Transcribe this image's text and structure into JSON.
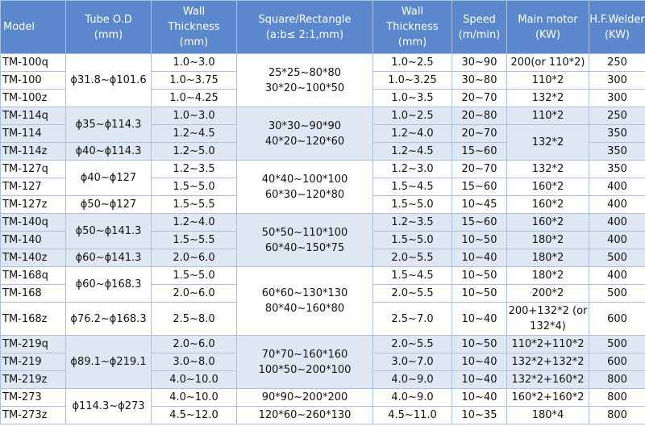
{
  "header": {
    "model": "Model",
    "tube_od": [
      "Tube O.D",
      "(mm)"
    ],
    "wall_thickness_round": [
      "Wall",
      "Thickness",
      "(mm)"
    ],
    "square_rect": [
      "Square/Rectangle",
      "(a:b≤ 2:1,mm)"
    ],
    "wall_thickness_square": [
      "Wall",
      "Thickness",
      "(mm)"
    ],
    "speed": [
      "Speed",
      "(m/min)"
    ],
    "main_motor": [
      "Main motor",
      "(KW)"
    ],
    "hf_welder": [
      "H.F.Welder",
      "(KW)"
    ]
  },
  "rows": [
    {
      "model": "TM-100q",
      "wall_round": "1.0~3.0",
      "wall_square": "1.0~2.5",
      "speed": "30~90",
      "motor": "200(or 110*2)",
      "welder": "250"
    },
    {
      "model": "TM-100",
      "wall_round": "1.0~3.75",
      "wall_square": "1.0~3.25",
      "speed": "30~80",
      "motor": "110*2",
      "welder": "300"
    },
    {
      "model": "TM-100z",
      "wall_round": "1.0~4.25",
      "wall_square": "1.0~3.5",
      "speed": "20~70",
      "motor": "132*2",
      "welder": "300"
    },
    {
      "model": "TM-114q",
      "wall_round": "1.0~3.0",
      "wall_square": "1.0~2.5",
      "speed": "20~80",
      "motor": "110*2",
      "welder": "250"
    },
    {
      "model": "TM-114",
      "wall_round": "1.2~4.5",
      "wall_square": "1.2~4.0",
      "speed": "20~70",
      "motor": "132*2",
      "welder": "350"
    },
    {
      "model": "TM-114z",
      "wall_round": "1.2~5.0",
      "wall_square": "1.2~4.5",
      "speed": "15~60",
      "motor": "",
      "welder": "350"
    },
    {
      "model": "TM-127q",
      "wall_round": "1.2~3.5",
      "wall_square": "1.2~3.0",
      "speed": "20~70",
      "motor": "132*2",
      "welder": "350"
    },
    {
      "model": "TM-127",
      "wall_round": "1.5~5.0",
      "wall_square": "1.5~4.5",
      "speed": "15~60",
      "motor": "160*2",
      "welder": "400"
    },
    {
      "model": "TM-127z",
      "wall_round": "1.5~5.5",
      "wall_square": "1.5~5.0",
      "speed": "10~45",
      "motor": "160*2",
      "welder": "400"
    },
    {
      "model": "TM-140q",
      "wall_round": "1.2~4.0",
      "wall_square": "1.2~3.5",
      "speed": "15~60",
      "motor": "160*2",
      "welder": "400"
    },
    {
      "model": "TM-140",
      "wall_round": "1.5~5.5",
      "wall_square": "1.5~5.0",
      "speed": "10~50",
      "motor": "180*2",
      "welder": "400"
    },
    {
      "model": "TM-140z",
      "wall_round": "2.0~6.0",
      "wall_square": "2.0~5.5",
      "speed": "10~40",
      "motor": "180*2",
      "welder": "500"
    },
    {
      "model": "TM-168q",
      "wall_round": "1.5~5.0",
      "wall_square": "1.5~4.5",
      "speed": "10~50",
      "motor": "180*2",
      "welder": "400"
    },
    {
      "model": "TM-168",
      "wall_round": "2.0~6.0",
      "wall_square": "2.0~5.5",
      "speed": "10~50",
      "motor": "200*2",
      "welder": "500"
    },
    {
      "model": "TM-168z",
      "wall_round": "2.5~8.0",
      "wall_square": "2.5~7.0",
      "speed": "10~40",
      "motor": "200+132*2 (or 132*4)",
      "welder": "600"
    },
    {
      "model": "TM-219q",
      "wall_round": "2.0~6.0",
      "wall_square": "2.0~5.5",
      "speed": "10~50",
      "motor": "110*2+110*2",
      "welder": "500"
    },
    {
      "model": "TM-219",
      "wall_round": "3.0~8.0",
      "wall_square": "3.0~7.0",
      "speed": "10~40",
      "motor": "132*2+132*2",
      "welder": "600"
    },
    {
      "model": "TM-219z",
      "wall_round": "4.0~10.0",
      "wall_square": "4.0~9.0",
      "speed": "10~40",
      "motor": "132*2+160*2",
      "welder": "800"
    },
    {
      "model": "TM-273",
      "wall_round": "4.0~10.0",
      "wall_square": "4.0~9.0",
      "speed": "10~40",
      "motor": "160*2+160*2",
      "welder": "800"
    },
    {
      "model": "TM-273z",
      "wall_round": "4.5~12.0",
      "wall_square": "4.5~11.0",
      "speed": "10~35",
      "motor": "180*4",
      "welder": "800"
    }
  ],
  "tube_od_groups": [
    "ϕ31.8~ϕ101.6",
    "ϕ35~ϕ114.3",
    "ϕ40~ϕ114.3",
    "ϕ40~ϕ127",
    "ϕ50~ϕ127",
    "ϕ50~ϕ141.3",
    "ϕ60~ϕ141.3",
    "ϕ60~ϕ168.3",
    "ϕ76.2~ϕ168.3",
    "ϕ89.1~ϕ219.1",
    "ϕ114.3~ϕ273"
  ],
  "square_groups": [
    [
      "25*25~80*80",
      "30*20~100*50"
    ],
    [
      "30*30~90*90",
      "40*20~120*60"
    ],
    [
      "40*40~100*100",
      "60*30~120*80"
    ],
    [
      "50*50~110*100",
      "60*40~150*75"
    ],
    [
      "60*60~130*130",
      "80*40~160*80"
    ],
    [
      "70*70~160*160",
      "100*50~200*100"
    ],
    [
      "90*90~200*200"
    ],
    [
      "120*60~260*130"
    ]
  ]
}
